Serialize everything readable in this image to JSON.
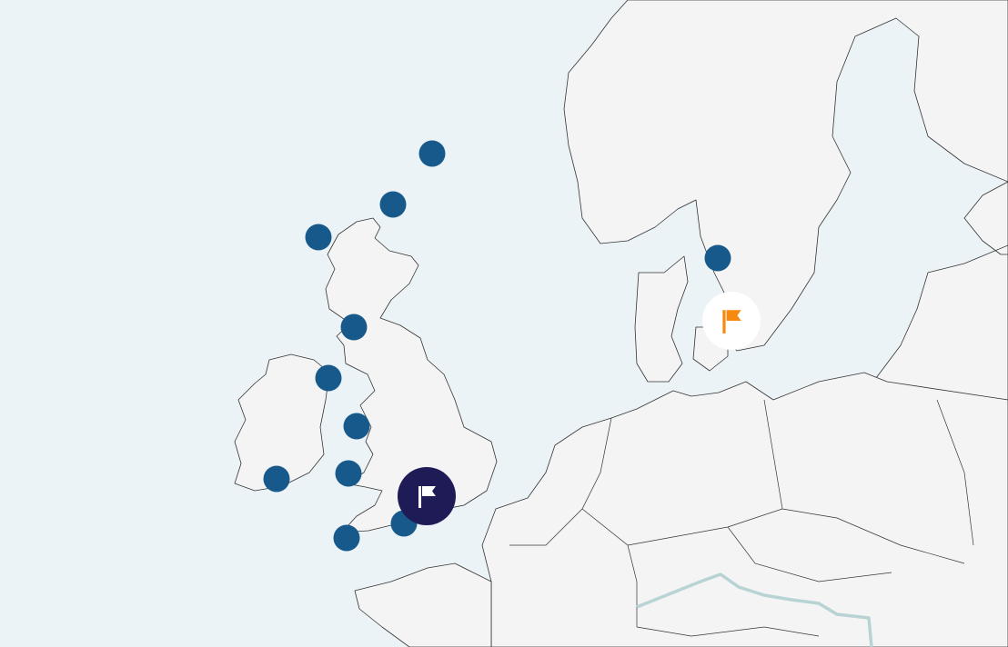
{
  "map": {
    "sea_color": "#ebf3f7",
    "land_color": "#f4f4f4",
    "river_color": "#b8d3d4",
    "location_marker_color": "#17598a",
    "location_marker_count": 12,
    "selected_marker": {
      "icon": "flag-icon",
      "background": "#1f1b56",
      "icon_color": "#ffffff"
    },
    "destination_marker": {
      "icon": "flag-icon",
      "background": "#ffffff",
      "icon_color": "#f7890f"
    }
  }
}
